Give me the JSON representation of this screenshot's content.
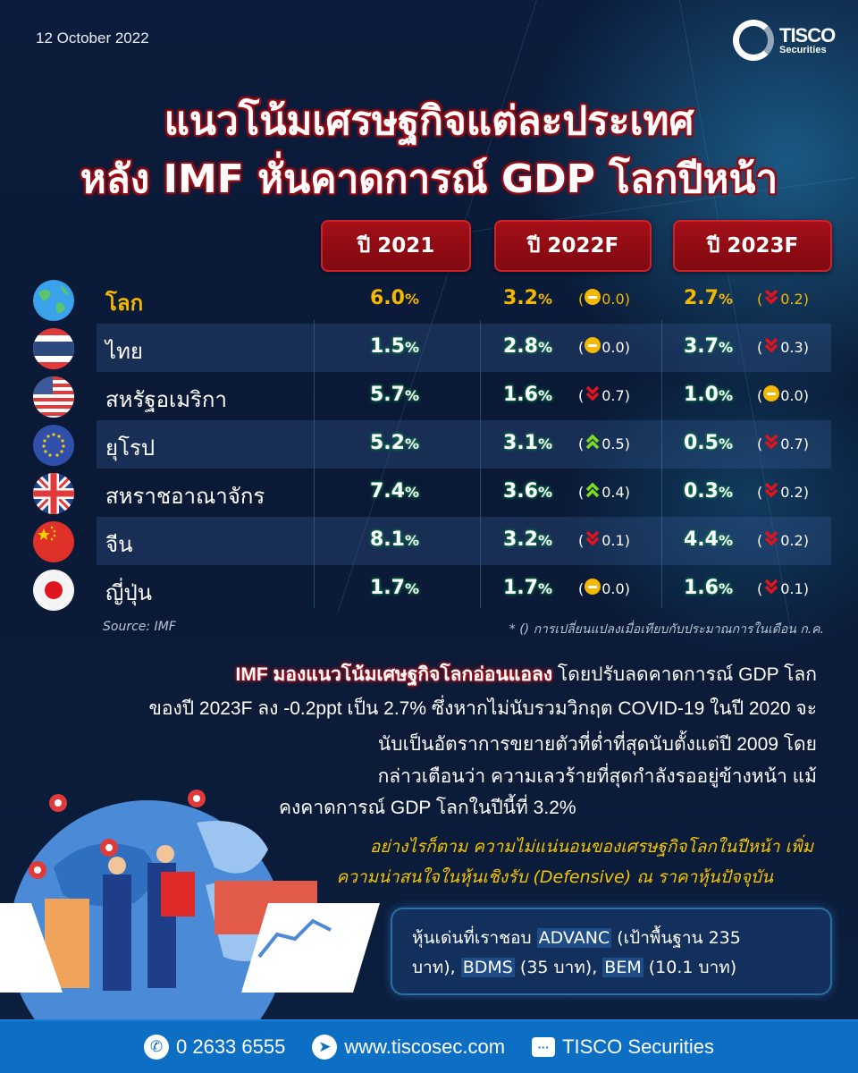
{
  "header": {
    "date": "12 October 2022",
    "logo_main": "TISCO",
    "logo_sub": "Securities",
    "title_line1": "แนวโน้มเศรษฐกิจแต่ละประเทศ",
    "title_line2": "หลัง IMF หั่นคาดการณ์ GDP โลกปีหน้า"
  },
  "table": {
    "columns": [
      "ปี 2021",
      "ปี 2022F",
      "ปี 2023F"
    ],
    "rows": [
      {
        "country": "โลก",
        "flag": "globe-icon",
        "y2021": "6.0",
        "y2022": "3.2",
        "chg2022": "0.0",
        "dir2022": "flat",
        "y2023": "2.7",
        "chg2023": "0.2",
        "dir2023": "down"
      },
      {
        "country": "ไทย",
        "flag": "thailand-flag-icon",
        "y2021": "1.5",
        "y2022": "2.8",
        "chg2022": "0.0",
        "dir2022": "flat",
        "y2023": "3.7",
        "chg2023": "0.3",
        "dir2023": "down"
      },
      {
        "country": "สหรัฐอเมริกา",
        "flag": "usa-flag-icon",
        "y2021": "5.7",
        "y2022": "1.6",
        "chg2022": "0.7",
        "dir2022": "down",
        "y2023": "1.0",
        "chg2023": "0.0",
        "dir2023": "flat"
      },
      {
        "country": "ยุโรป",
        "flag": "eu-flag-icon",
        "y2021": "5.2",
        "y2022": "3.1",
        "chg2022": "0.5",
        "dir2022": "up",
        "y2023": "0.5",
        "chg2023": "0.7",
        "dir2023": "down"
      },
      {
        "country": "สหราชอาณาจักร",
        "flag": "uk-flag-icon",
        "y2021": "7.4",
        "y2022": "3.6",
        "chg2022": "0.4",
        "dir2022": "up",
        "y2023": "0.3",
        "chg2023": "0.2",
        "dir2023": "down"
      },
      {
        "country": "จีน",
        "flag": "china-flag-icon",
        "y2021": "8.1",
        "y2022": "3.2",
        "chg2022": "0.1",
        "dir2022": "down",
        "y2023": "4.4",
        "chg2023": "0.2",
        "dir2023": "down"
      },
      {
        "country": "ญี่ปุ่น",
        "flag": "japan-flag-icon",
        "y2021": "1.7",
        "y2022": "1.7",
        "chg2022": "0.0",
        "dir2022": "flat",
        "y2023": "1.6",
        "chg2023": "0.1",
        "dir2023": "down"
      }
    ],
    "pct": "%",
    "source": "Source: IMF",
    "note": "* () การเปลี่ยนแปลงเมื่อเทียบกับประมาณการในเดือน ก.ค."
  },
  "body": {
    "highlight": "IMF มองแนวโน้มเศษฐกิจโลกอ่อนแอลง",
    "line1_rest": " โดยปรับลดคาดการณ์ GDP โลก",
    "line2": "ของปี 2023F ลง -0.2ppt เป็น 2.7% ซึ่งหากไม่นับรวมวิกฤต COVID-19 ในปี 2020 จะ",
    "line3": "นับเป็นอัตราการขยายตัวที่ต่ำที่สุดนับตั้งแต่ปี 2009 โดย",
    "line4": "กล่าวเตือนว่า ความเลวร้ายที่สุดกำลังรออยู่ข้างหน้า แม้",
    "line5": "คงคาดการณ์ GDP โลกในปีนี้ที่ 3.2%",
    "italic1": "อย่างไรก็ตาม ความไม่แน่นอนของเศรษฐกิจโลกในปีหน้า เพิ่ม",
    "italic2": "ความน่าสนใจในหุ้นเชิงรับ (Defensive) ณ ราคาหุ้นปัจจุบัน"
  },
  "picks": {
    "prefix": "หุ้นเด่นที่เราชอบ ",
    "t1": "ADVANC",
    "t1_rest": " (เป้าพื้นฐาน 235",
    "t1_rest2": "บาท), ",
    "t2": "BDMS",
    "t2_rest": " (35 บาท), ",
    "t3": "BEM",
    "t3_rest": " (10.1 บาท)"
  },
  "footer": {
    "phone": "0 2633 6555",
    "website": "www.tiscosec.com",
    "social": "TISCO Securities"
  },
  "colors": {
    "accent_red": "#a50f18",
    "world_yellow": "#f5b800",
    "footer_blue": "#0d6fc4",
    "up_green": "#7ddc1f",
    "down_red": "#e0141c"
  }
}
